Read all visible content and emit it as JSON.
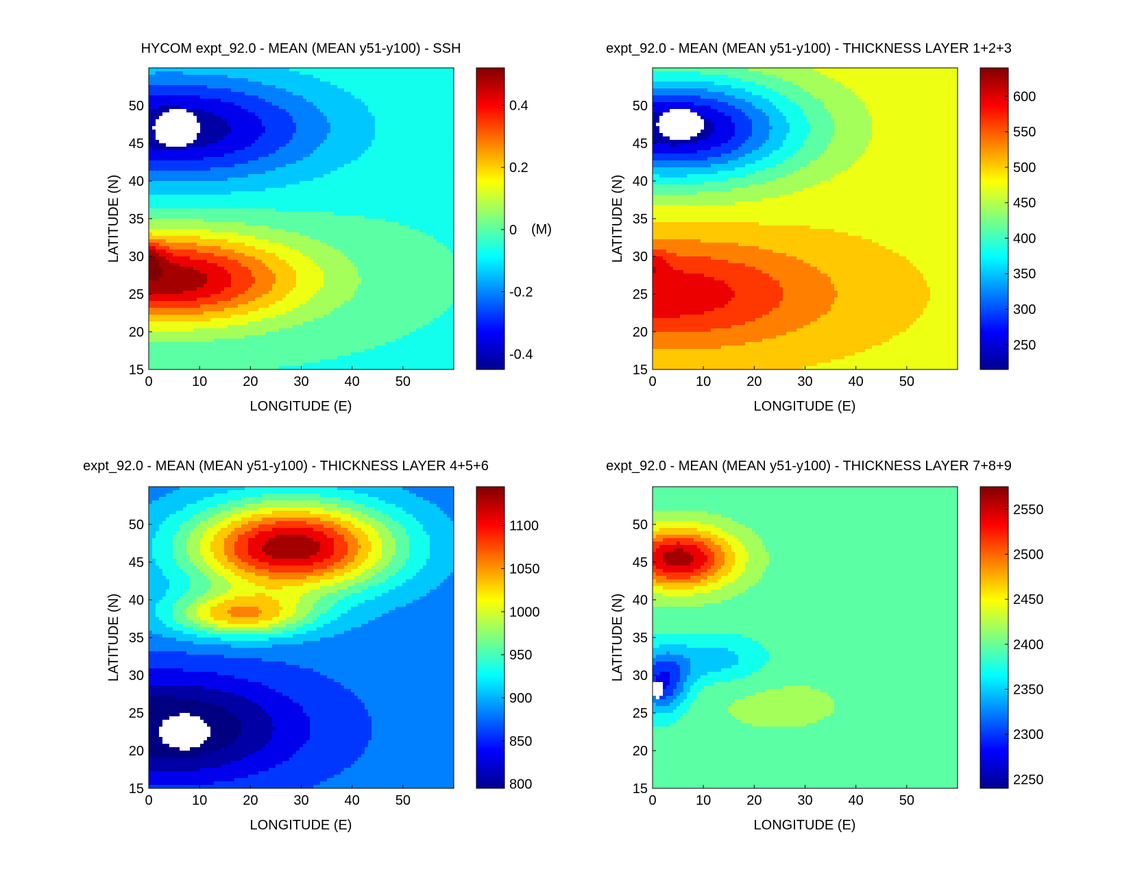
{
  "chart_data": [
    {
      "type": "heatmap",
      "title": "HYCOM expt_92.0 - MEAN (MEAN y51-y100) - SSH",
      "xlabel": "LONGITUDE (E)",
      "ylabel": "LATITUDE (N)",
      "xlim": [
        0,
        60
      ],
      "ylim": [
        15,
        55
      ],
      "xticks": [
        "0",
        "10",
        "20",
        "30",
        "40",
        "50"
      ],
      "yticks": [
        "15",
        "20",
        "25",
        "30",
        "35",
        "40",
        "45",
        "50"
      ],
      "colorbar": {
        "range": [
          -0.45,
          0.52
        ],
        "ticks": [
          "-0.4",
          "-0.2",
          "0",
          "0.2",
          "0.4"
        ],
        "unit": "(M)"
      },
      "field": {
        "base": -0.04,
        "features": [
          {
            "lon": 4,
            "lat": 47,
            "rlon": 30,
            "rlat": 7,
            "amp": -0.4
          },
          {
            "lon": 2,
            "lat": 27,
            "rlon": 28,
            "rlat": 6,
            "amp": 0.55
          },
          {
            "lon": 0,
            "lat": 30,
            "rlon": 3,
            "rlat": 2,
            "amp": 0.15
          }
        ],
        "masks": [
          {
            "lon": 5.5,
            "lat": 47,
            "rlon": 4.5,
            "rlat": 2.5
          }
        ]
      }
    },
    {
      "type": "heatmap",
      "title": "expt_92.0 - MEAN (MEAN y51-y100) - THICKNESS LAYER 1+2+3",
      "xlabel": "LONGITUDE (E)",
      "ylabel": "LATITUDE (N)",
      "xlim": [
        0,
        60
      ],
      "ylim": [
        15,
        55
      ],
      "xticks": [
        "0",
        "10",
        "20",
        "30",
        "40",
        "50"
      ],
      "yticks": [
        "15",
        "20",
        "25",
        "30",
        "35",
        "40",
        "45",
        "50"
      ],
      "colorbar": {
        "range": [
          215,
          640
        ],
        "ticks": [
          "250",
          "300",
          "350",
          "400",
          "450",
          "500",
          "550",
          "600"
        ],
        "unit": ""
      },
      "field": {
        "base": 480,
        "features": [
          {
            "lon": 4,
            "lat": 47,
            "rlon": 25,
            "rlat": 7,
            "amp": -260
          },
          {
            "lon": 2,
            "lat": 25,
            "rlon": 32,
            "rlat": 7,
            "amp": 120
          },
          {
            "lon": 0,
            "lat": 29,
            "rlon": 3,
            "rlat": 2,
            "amp": 40
          }
        ],
        "masks": [
          {
            "lon": 5.5,
            "lat": 47.5,
            "rlon": 4.5,
            "rlat": 2
          }
        ]
      }
    },
    {
      "type": "heatmap",
      "title": "expt_92.0 - MEAN (MEAN y51-y100) - THICKNESS LAYER 4+5+6",
      "xlabel": "LONGITUDE (E)",
      "ylabel": "LATITUDE (N)",
      "xlim": [
        0,
        60
      ],
      "ylim": [
        15,
        55
      ],
      "xticks": [
        "0",
        "10",
        "20",
        "30",
        "40",
        "50"
      ],
      "yticks": [
        "15",
        "20",
        "25",
        "30",
        "35",
        "40",
        "45",
        "50"
      ],
      "colorbar": {
        "range": [
          795,
          1145
        ],
        "ticks": [
          "800",
          "850",
          "900",
          "950",
          "1000",
          "1050",
          "1100"
        ],
        "unit": ""
      },
      "field": {
        "base": 880,
        "features": [
          {
            "lon": 28,
            "lat": 47,
            "rlon": 20,
            "rlat": 6,
            "amp": 260
          },
          {
            "lon": 18,
            "lat": 38,
            "rlon": 14,
            "rlat": 3,
            "amp": 150
          },
          {
            "lon": 3,
            "lat": 23,
            "rlon": 26,
            "rlat": 7,
            "amp": -120
          }
        ],
        "masks": [
          {
            "lon": 7,
            "lat": 22.5,
            "rlon": 5,
            "rlat": 2.3
          }
        ]
      }
    },
    {
      "type": "heatmap",
      "title": "expt_92.0 - MEAN (MEAN y51-y100) - THICKNESS LAYER 7+8+9",
      "xlabel": "LONGITUDE (E)",
      "ylabel": "LATITUDE (N)",
      "xlim": [
        0,
        60
      ],
      "ylim": [
        15,
        55
      ],
      "xticks": [
        "0",
        "10",
        "20",
        "30",
        "40",
        "50"
      ],
      "yticks": [
        "15",
        "20",
        "25",
        "30",
        "35",
        "40",
        "45",
        "50"
      ],
      "colorbar": {
        "range": [
          2240,
          2575
        ],
        "ticks": [
          "2250",
          "2300",
          "2350",
          "2400",
          "2450",
          "2500",
          "2550"
        ],
        "unit": ""
      },
      "field": {
        "base": 2395,
        "features": [
          {
            "lon": 5,
            "lat": 45.5,
            "rlon": 11,
            "rlat": 4,
            "amp": 170
          },
          {
            "lon": 2,
            "lat": 29,
            "rlon": 5,
            "rlat": 4,
            "amp": -110
          },
          {
            "lon": 12,
            "lat": 32,
            "rlon": 10,
            "rlat": 3,
            "amp": -50
          },
          {
            "lon": 25,
            "lat": 26,
            "rlon": 18,
            "rlat": 5,
            "amp": 18
          }
        ],
        "masks": [
          {
            "lon": 1,
            "lat": 28,
            "rlon": 1,
            "rlat": 1.2
          }
        ]
      }
    }
  ]
}
